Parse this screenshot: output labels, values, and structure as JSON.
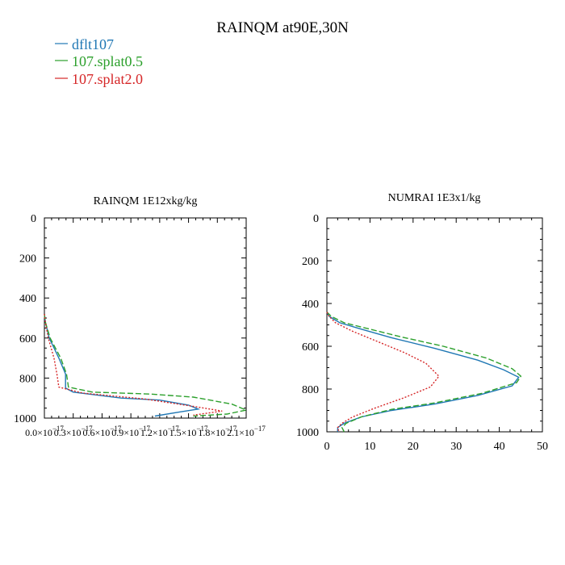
{
  "figure": {
    "title": "RAINQM at90E,30N"
  },
  "legend": [
    {
      "name": "dflt107",
      "color": "#1f77b4",
      "dash": "solid"
    },
    {
      "name": "107.splat0.5",
      "color": "#2ca02c",
      "dash": "dashed"
    },
    {
      "name": "107.splat2.0",
      "color": "#d62728",
      "dash": "dotted"
    }
  ],
  "chart_data": [
    {
      "type": "line",
      "title": "RAINQM  1E12xkg/kg",
      "xlabel": "",
      "ylabel": "",
      "xlim": [
        0,
        2.1e-17
      ],
      "ylim": [
        1000,
        0
      ],
      "y_inverted": true,
      "xticks": [
        0,
        3e-18,
        6e-18,
        9e-18,
        1.2e-17,
        1.5e-17,
        1.8e-17,
        2.1e-17
      ],
      "xtick_labels": [
        "0.0×10",
        "0.3×10",
        "0.6×10",
        "0.9×10",
        "1.2×10",
        "1.5×10",
        "1.8×10",
        "2.1×10"
      ],
      "xtick_exponent": "−17",
      "yticks": [
        0,
        200,
        400,
        600,
        800,
        1000
      ],
      "ytick_labels": [
        "0",
        "200",
        "400",
        "600",
        "800",
        "1000"
      ],
      "grid": false,
      "series": [
        {
          "name": "dflt107",
          "points": [
            [
              0,
              480
            ],
            [
              1e-19,
              520
            ],
            [
              5e-19,
              600
            ],
            [
              1.5e-18,
              700
            ],
            [
              2.2e-18,
              780
            ],
            [
              2.2e-18,
              850
            ],
            [
              3e-18,
              870
            ],
            [
              8e-18,
              900
            ],
            [
              1.2e-17,
              910
            ],
            [
              1.5e-17,
              935
            ],
            [
              1.6e-17,
              955
            ],
            [
              1.4e-17,
              970
            ],
            [
              1.15e-17,
              990
            ]
          ]
        },
        {
          "name": "107.splat0.5",
          "points": [
            [
              0,
              480
            ],
            [
              1e-19,
              520
            ],
            [
              6e-19,
              600
            ],
            [
              1.7e-18,
              700
            ],
            [
              2.3e-18,
              780
            ],
            [
              2.5e-18,
              845
            ],
            [
              5e-18,
              870
            ],
            [
              1.1e-17,
              880
            ],
            [
              1.55e-17,
              895
            ],
            [
              1.95e-17,
              930
            ],
            [
              2.1e-17,
              960
            ],
            [
              1.9e-17,
              980
            ],
            [
              1.55e-17,
              990
            ]
          ]
        },
        {
          "name": "107.splat2.0",
          "points": [
            [
              0,
              480
            ],
            [
              1e-19,
              520
            ],
            [
              4e-19,
              600
            ],
            [
              1e-18,
              700
            ],
            [
              1.3e-18,
              780
            ],
            [
              1.5e-18,
              845
            ],
            [
              4e-18,
              875
            ],
            [
              1.05e-17,
              905
            ],
            [
              1.6e-17,
              945
            ],
            [
              1.85e-17,
              965
            ],
            [
              1.7e-17,
              975
            ],
            [
              1.55e-17,
              985
            ]
          ]
        }
      ]
    },
    {
      "type": "line",
      "title": "NUMRAI  1E3x1/kg",
      "xlabel": "",
      "ylabel": "",
      "xlim": [
        0,
        50
      ],
      "ylim": [
        1000,
        0
      ],
      "y_inverted": true,
      "xticks": [
        0,
        10,
        20,
        30,
        40,
        50
      ],
      "xtick_labels": [
        "0",
        "10",
        "20",
        "30",
        "40",
        "50"
      ],
      "yticks": [
        0,
        200,
        400,
        600,
        800,
        1000
      ],
      "ytick_labels": [
        "0",
        "200",
        "400",
        "600",
        "800",
        "1000"
      ],
      "grid": false,
      "series": [
        {
          "name": "dflt107",
          "points": [
            [
              0,
              440
            ],
            [
              0.5,
              460
            ],
            [
              3,
              490
            ],
            [
              8,
              520
            ],
            [
              15,
              560
            ],
            [
              25,
              610
            ],
            [
              35,
              665
            ],
            [
              41,
              710
            ],
            [
              44.5,
              745
            ],
            [
              43,
              785
            ],
            [
              35,
              830
            ],
            [
              25,
              870
            ],
            [
              15,
              900
            ],
            [
              8,
              930
            ],
            [
              4,
              960
            ],
            [
              2.5,
              980
            ],
            [
              2.5,
              1000
            ]
          ]
        },
        {
          "name": "107.splat0.5",
          "points": [
            [
              0,
              440
            ],
            [
              1,
              460
            ],
            [
              4,
              490
            ],
            [
              10,
              520
            ],
            [
              17,
              555
            ],
            [
              27,
              600
            ],
            [
              37,
              655
            ],
            [
              43,
              705
            ],
            [
              45,
              740
            ],
            [
              44,
              770
            ],
            [
              36,
              820
            ],
            [
              25,
              865
            ],
            [
              15,
              895
            ],
            [
              8,
              930
            ],
            [
              4.5,
              960
            ],
            [
              3.5,
              980
            ],
            [
              4,
              1000
            ]
          ]
        },
        {
          "name": "107.splat2.0",
          "points": [
            [
              0,
              440
            ],
            [
              0.5,
              460
            ],
            [
              2,
              490
            ],
            [
              6,
              530
            ],
            [
              12,
              580
            ],
            [
              18,
              630
            ],
            [
              23,
              680
            ],
            [
              26,
              740
            ],
            [
              24,
              790
            ],
            [
              18,
              840
            ],
            [
              11,
              890
            ],
            [
              6,
              930
            ],
            [
              3.5,
              960
            ],
            [
              2.5,
              980
            ],
            [
              2.8,
              1000
            ]
          ]
        }
      ]
    }
  ]
}
